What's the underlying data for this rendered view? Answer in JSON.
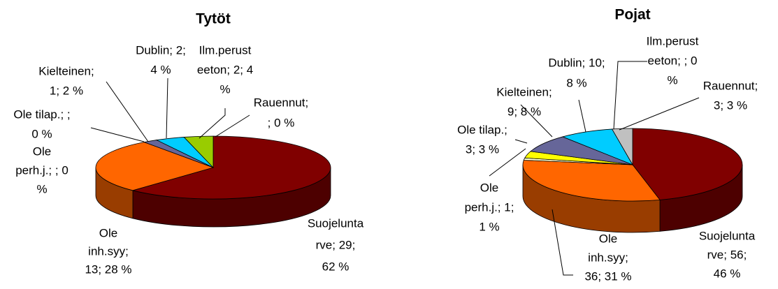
{
  "chart_data": [
    {
      "type": "pie",
      "title": "Tytöt",
      "value_labels": [
        [
          "Suojelunta",
          "rve; 29;",
          "62 %"
        ],
        [
          "Ole",
          "inh.syy;",
          "13; 28 %"
        ],
        [
          "Ole",
          "perh.j.; ; 0",
          "%"
        ],
        [
          "Ole tilap.; ;",
          "0 %"
        ],
        [
          "Kielteinen;",
          "1; 2 %"
        ],
        [
          "Dublin; 2;",
          "4 %"
        ],
        [
          "Ilm.perust",
          "eeton; 2; 4",
          "%"
        ],
        [
          "Rauennut;",
          "; 0 %"
        ]
      ],
      "values": [
        62,
        28,
        0,
        0,
        2,
        4,
        4,
        0
      ],
      "colors": [
        "#800000",
        "#ff6600",
        "#ffffcc",
        "#ffff00",
        "#666699",
        "#00ccff",
        "#99cc00",
        "#c0c0c0"
      ]
    },
    {
      "type": "pie",
      "title": "Pojat",
      "value_labels": [
        [
          "Suojelunta",
          "rve; 56;",
          "46 %"
        ],
        [
          "Ole",
          "inh.syy;",
          "36; 31 %"
        ],
        [
          "Ole",
          "perh.j.; 1;",
          "1 %"
        ],
        [
          "Ole tilap.;",
          "3; 3 %"
        ],
        [
          "Kielteinen;",
          "9; 8 %"
        ],
        [
          "Dublin; 10;",
          "8 %"
        ],
        [
          "Ilm.perust",
          "eeton; ; 0",
          "%"
        ],
        [
          "Rauennut;",
          "3; 3 %"
        ]
      ],
      "values": [
        46,
        31,
        1,
        3,
        8,
        8,
        0,
        3
      ],
      "colors": [
        "#800000",
        "#ff6600",
        "#ffffcc",
        "#ffff00",
        "#666699",
        "#00ccff",
        "#99cc00",
        "#c0c0c0"
      ]
    }
  ]
}
